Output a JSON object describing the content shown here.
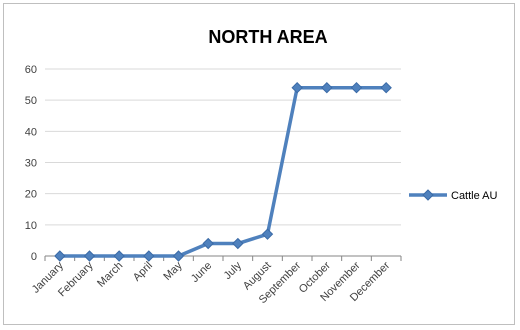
{
  "chart_data": {
    "type": "line",
    "title": "NORTH AREA",
    "xlabel": "",
    "ylabel": "",
    "categories": [
      "January",
      "February",
      "March",
      "April",
      "May",
      "June",
      "July",
      "August",
      "September",
      "October",
      "November",
      "December"
    ],
    "series": [
      {
        "name": "Cattle AU",
        "values": [
          0,
          0,
          0,
          0,
          0,
          4,
          4,
          7,
          54,
          54,
          54,
          54
        ],
        "color": "#4f81bd"
      }
    ],
    "ylim": [
      0,
      60
    ],
    "yticks": [
      "0",
      "10",
      "20",
      "30",
      "40",
      "50",
      "60"
    ],
    "grid": true,
    "legend_position": "right",
    "marker": "diamond"
  }
}
